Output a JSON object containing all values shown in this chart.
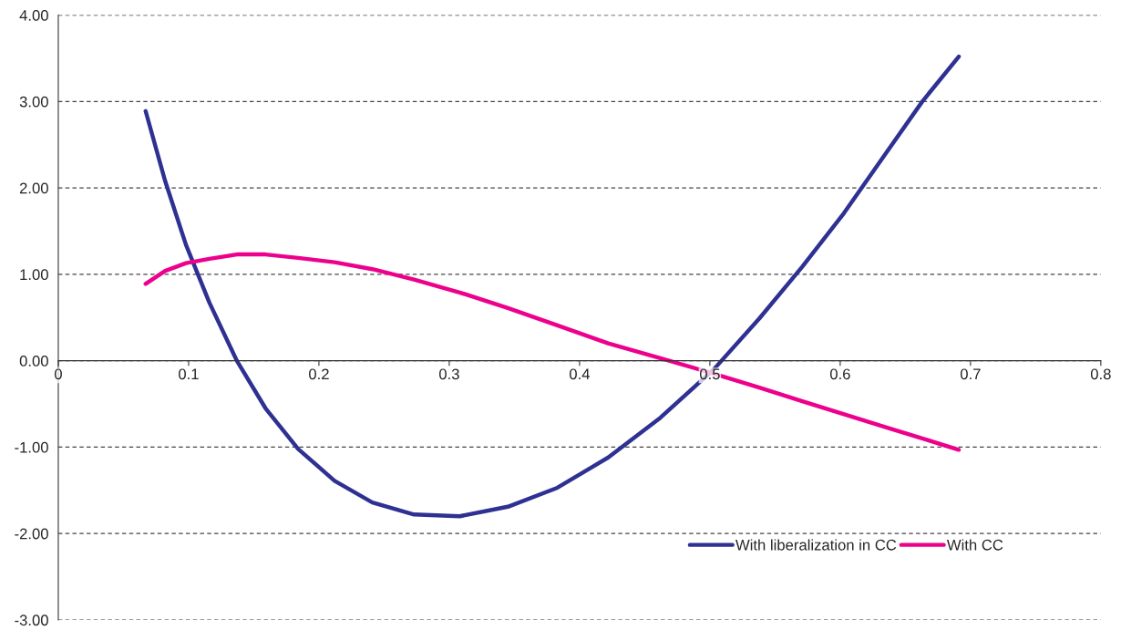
{
  "chart_data": {
    "type": "line",
    "x": [
      0.067,
      0.082,
      0.098,
      0.116,
      0.137,
      0.159,
      0.184,
      0.212,
      0.241,
      0.273,
      0.308,
      0.345,
      0.383,
      0.422,
      0.462,
      0.503,
      0.538,
      0.571,
      0.603,
      0.635,
      0.663,
      0.691
    ],
    "series": [
      {
        "name": "With liberalization in CC",
        "color": "#2e3192",
        "values": [
          2.89,
          2.08,
          1.34,
          0.67,
          0.0,
          -0.55,
          -1.02,
          -1.39,
          -1.64,
          -1.78,
          -1.8,
          -1.69,
          -1.47,
          -1.12,
          -0.66,
          -0.1,
          0.49,
          1.09,
          1.71,
          2.4,
          3.0,
          3.52
        ]
      },
      {
        "name": "With CC",
        "color": "#ec008c",
        "values": [
          0.89,
          1.04,
          1.13,
          1.18,
          1.23,
          1.23,
          1.19,
          1.14,
          1.06,
          0.94,
          0.79,
          0.61,
          0.41,
          0.2,
          0.03,
          -0.15,
          -0.31,
          -0.47,
          -0.62,
          -0.77,
          -0.9,
          -1.03
        ]
      }
    ],
    "xlim": [
      0,
      0.8
    ],
    "xticks": [
      0,
      0.1,
      0.2,
      0.3,
      0.4,
      0.5,
      0.6,
      0.7,
      0.8
    ],
    "ylim": [
      -3,
      4
    ],
    "yticks": [
      {
        "value": -3,
        "label": "-3.00"
      },
      {
        "value": -2,
        "label": "-2.00"
      },
      {
        "value": -1,
        "label": "-1.00"
      },
      {
        "value": 0,
        "label": "0.00"
      },
      {
        "value": 1,
        "label": "1.00"
      },
      {
        "value": 2,
        "label": "2.00"
      },
      {
        "value": 3,
        "label": "3.00"
      },
      {
        "value": 4,
        "label": "4.00"
      }
    ],
    "grid": "y",
    "legend": "bottom right",
    "marker": "none",
    "line_style": "solid"
  }
}
